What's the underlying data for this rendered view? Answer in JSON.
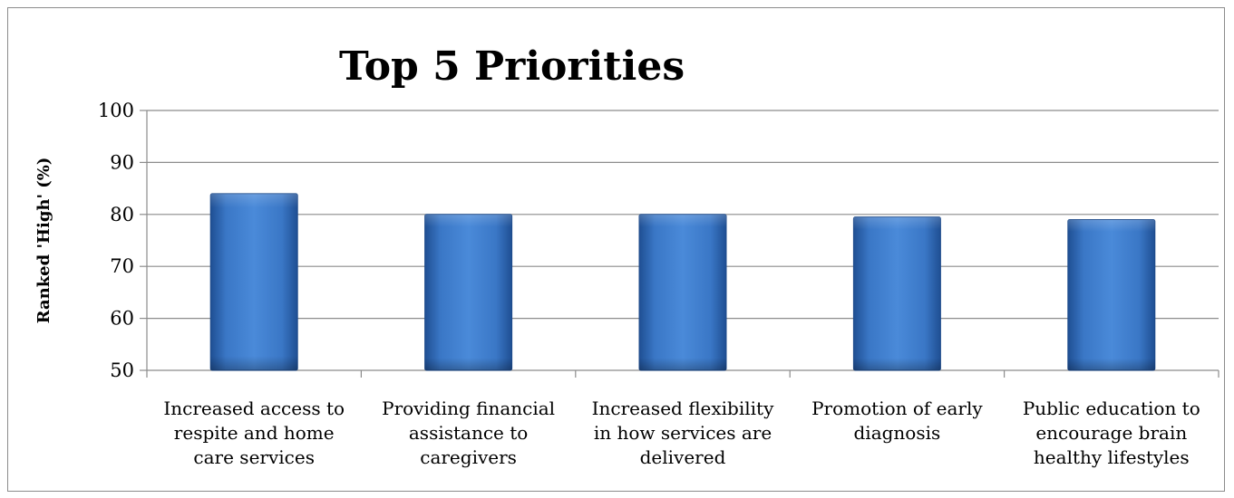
{
  "chart_data": {
    "type": "bar",
    "title": "Top 5 Priorities",
    "xlabel": "",
    "ylabel": "Ranked 'High' (%)",
    "ylim": [
      50,
      100
    ],
    "yticks": [
      50,
      60,
      70,
      80,
      90,
      100
    ],
    "grid": true,
    "legend": "none",
    "bar_color": "#3f7fd0",
    "categories": [
      [
        "Increased access to",
        "respite and home",
        "care services"
      ],
      [
        "Providing financial",
        "assistance to",
        "caregivers"
      ],
      [
        "Increased flexibility",
        "in how services are",
        "delivered"
      ],
      [
        "Promotion of early",
        "diagnosis"
      ],
      [
        "Public education to",
        "encourage brain",
        "healthy lifestyles"
      ]
    ],
    "values": [
      84,
      80,
      80,
      79.5,
      79
    ]
  }
}
